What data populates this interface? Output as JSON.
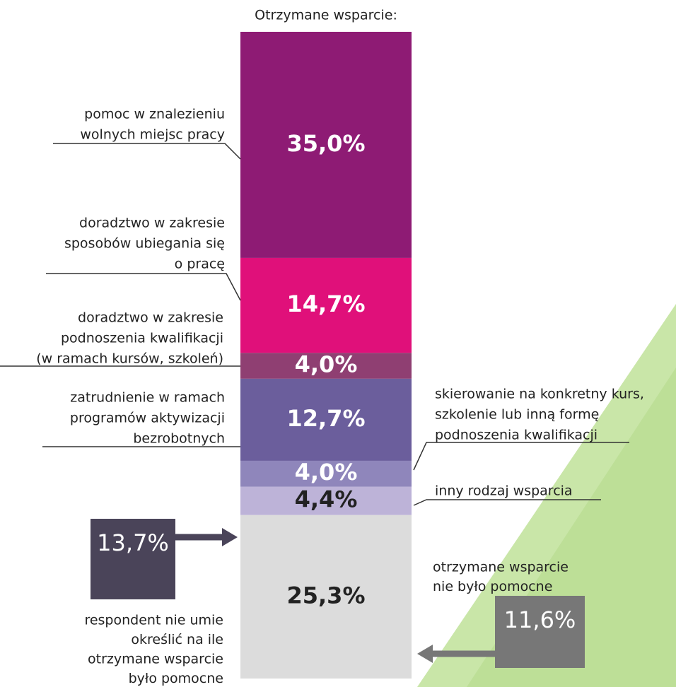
{
  "chart_data": {
    "type": "stacked_bar",
    "title": "Otrzymane wsparcie:",
    "series": [
      {
        "label": [
          "pomoc w znalezieniu",
          "wolnych miejsc pracy"
        ],
        "color": "#8e1b74",
        "text_color": "#ffffff",
        "values": [
          35.0
        ],
        "value_labels": [
          "35,0%"
        ]
      },
      {
        "label": [
          "doradztwo w zakresie",
          "sposobów ubiegania się",
          "o pracę"
        ],
        "color": "#e0107a",
        "text_color": "#ffffff",
        "values": [
          14.7
        ],
        "value_labels": [
          "14,7%"
        ]
      },
      {
        "label": [
          "doradztwo w zakresie",
          "podnoszenia kwalifikacji",
          "(w ramach kursów, szkoleń)"
        ],
        "color": "#8f3f72",
        "text_color": "#ffffff",
        "values": [
          4.0
        ],
        "value_labels": [
          "4,0%"
        ]
      },
      {
        "label": [
          "zatrudnienie w ramach",
          "programów aktywizacji",
          "bezrobotnych"
        ],
        "color": "#6b5e9c",
        "text_color": "#ffffff",
        "values": [
          12.7
        ],
        "value_labels": [
          "12,7%"
        ]
      },
      {
        "label": [
          "skierowanie na konkretny kurs,",
          "szkolenie lub inną formę",
          "podnoszenia kwalifikacji"
        ],
        "color": "#8f86bb",
        "text_color": "#ffffff",
        "values": [
          4.0
        ],
        "value_labels": [
          "4,0%"
        ]
      },
      {
        "label": [
          "inny rodzaj wsparcia"
        ],
        "color": "#bdb3d8",
        "text_color": "#222222",
        "values": [
          4.4
        ],
        "value_labels": [
          "4,4%"
        ]
      },
      {
        "label": [],
        "color": "#dcdcdc",
        "text_color": "#222222",
        "values": [
          25.3
        ],
        "value_labels": [
          "25,3%"
        ]
      }
    ],
    "breakdown": [
      {
        "label": [
          "respondent nie umie",
          "określić na ile",
          "otrzymane wsparcie",
          "było pomocne"
        ],
        "color": "#4a4459",
        "value": 13.7,
        "value_label": "13,7%"
      },
      {
        "label": [
          "otrzymane wsparcie",
          "nie było pomocne"
        ],
        "color": "#777777",
        "value": 11.6,
        "value_label": "11,6%"
      }
    ]
  }
}
